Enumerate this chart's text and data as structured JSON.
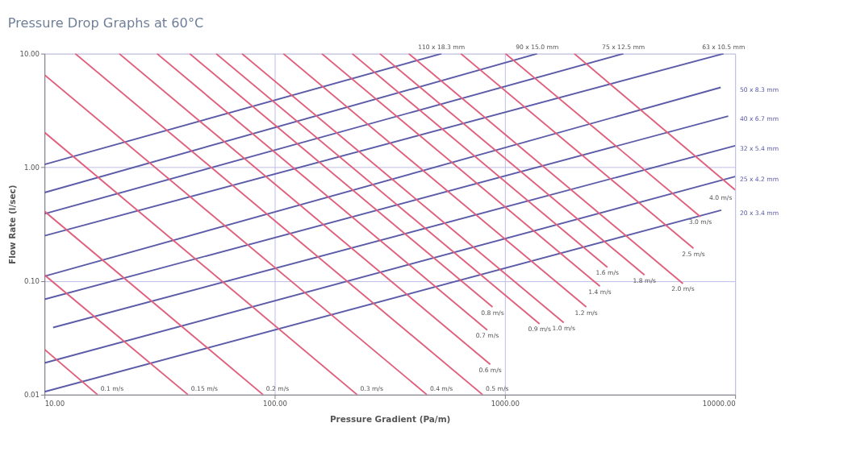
{
  "chart_data": {
    "type": "line",
    "title": "Pressure Drop Graphs at 60°C",
    "xlabel": "Pressure Gradient (Pa/m)",
    "ylabel": "Flow Rate (l/sec)",
    "log": "xy",
    "grid": true,
    "xlim": [
      10,
      10000
    ],
    "ylim": [
      0.01,
      10
    ],
    "xticks": [
      {
        "value": 10,
        "label": "10.00"
      },
      {
        "value": 100,
        "label": "100.00"
      },
      {
        "value": 1000,
        "label": "1000.00"
      },
      {
        "value": 10000,
        "label": "10000.00"
      }
    ],
    "yticks": [
      {
        "value": 0.01,
        "label": "0.01"
      },
      {
        "value": 0.1,
        "label": "0.10"
      },
      {
        "value": 1,
        "label": "1.00"
      },
      {
        "value": 10,
        "label": "10.00"
      }
    ],
    "series": [
      {
        "name": "110 x 18.3 mm",
        "color": "#5b5ba8",
        "x": [
          10,
          530
        ],
        "values": [
          1.06,
          10
        ]
      },
      {
        "name": "90 x 15.0 mm",
        "color": "#5b5ba8",
        "x": [
          10,
          1380
        ],
        "values": [
          0.6,
          10
        ]
      },
      {
        "name": "75 x 12.5 mm",
        "color": "#5b5ba8",
        "x": [
          10,
          3270
        ],
        "values": [
          0.39,
          10
        ]
      },
      {
        "name": "63 x 10.5 mm",
        "color": "#5b5ba8",
        "x": [
          10,
          8900
        ],
        "values": [
          0.25,
          10
        ]
      },
      {
        "name": "50 x 8.3 mm",
        "color": "#5b5ba8",
        "x": [
          10,
          8650
        ],
        "values": [
          0.11,
          5.05
        ]
      },
      {
        "name": "40 x 6.7 mm",
        "color": "#5b5ba8",
        "x": [
          10,
          9330
        ],
        "values": [
          0.069,
          2.82
        ]
      },
      {
        "name": "32 x 5.4 mm",
        "color": "#5b5ba8",
        "x": [
          10.9,
          10000
        ],
        "values": [
          0.039,
          1.55
        ]
      },
      {
        "name": "25 x 4.2 mm",
        "color": "#5b5ba8",
        "x": [
          10,
          10000
        ],
        "values": [
          0.019,
          0.83
        ]
      },
      {
        "name": "20 x 3.4 mm",
        "color": "#5b5ba8",
        "x": [
          10,
          8700
        ],
        "values": [
          0.0106,
          0.42
        ]
      },
      {
        "name": "0.1 m/s",
        "color": "#e0607c",
        "x": [
          10,
          17
        ],
        "values": [
          0.025,
          0.01
        ]
      },
      {
        "name": "0.15 m/s",
        "color": "#e0607c",
        "x": [
          10,
          42
        ],
        "values": [
          0.113,
          0.01
        ]
      },
      {
        "name": "0.2 m/s",
        "color": "#e0607c",
        "x": [
          10,
          89
        ],
        "values": [
          0.41,
          0.01
        ]
      },
      {
        "name": "0.3 m/s",
        "color": "#e0607c",
        "x": [
          10,
          228
        ],
        "values": [
          2.03,
          0.01
        ]
      },
      {
        "name": "0.4 m/s",
        "color": "#e0607c",
        "x": [
          10,
          458
        ],
        "values": [
          6.5,
          0.01
        ]
      },
      {
        "name": "0.5 m/s",
        "color": "#e0607c",
        "x": [
          13.6,
          800
        ],
        "values": [
          10,
          0.01
        ]
      },
      {
        "name": "0.6 m/s",
        "color": "#e0607c",
        "x": [
          21.1,
          863
        ],
        "values": [
          10,
          0.0185
        ]
      },
      {
        "name": "0.7 m/s",
        "color": "#e0607c",
        "x": [
          30.8,
          838
        ],
        "values": [
          10,
          0.037
        ]
      },
      {
        "name": "0.8 m/s",
        "color": "#e0607c",
        "x": [
          42.7,
          883
        ],
        "values": [
          10,
          0.059
        ]
      },
      {
        "name": "0.9 m/s",
        "color": "#e0607c",
        "x": [
          55.6,
          1413
        ],
        "values": [
          10,
          0.042
        ]
      },
      {
        "name": "1.0 m/s",
        "color": "#e0607c",
        "x": [
          72,
          1800
        ],
        "values": [
          10,
          0.043
        ]
      },
      {
        "name": "1.2 m/s",
        "color": "#e0607c",
        "x": [
          109,
          2255
        ],
        "values": [
          10,
          0.059
        ]
      },
      {
        "name": "1.4 m/s",
        "color": "#e0607c",
        "x": [
          160,
          2584
        ],
        "values": [
          10,
          0.09
        ]
      },
      {
        "name": "1.6 m/s",
        "color": "#e0607c",
        "x": [
          217,
          2786
        ],
        "values": [
          10,
          0.132
        ]
      },
      {
        "name": "1.8 m/s",
        "color": "#e0607c",
        "x": [
          286,
          4036
        ],
        "values": [
          10,
          0.113
        ]
      },
      {
        "name": "2.0 m/s",
        "color": "#e0607c",
        "x": [
          382,
          5930
        ],
        "values": [
          10,
          0.095
        ]
      },
      {
        "name": "2.5 m/s",
        "color": "#e0607c",
        "x": [
          643,
          6590
        ],
        "values": [
          10,
          0.194
        ]
      },
      {
        "name": "3.0 m/s",
        "color": "#e0607c",
        "x": [
          1005,
          7060
        ],
        "values": [
          10,
          0.368
        ]
      },
      {
        "name": "4.0 m/s",
        "color": "#e0607c",
        "x": [
          2000,
          10000
        ],
        "values": [
          10,
          0.632
        ]
      }
    ]
  }
}
